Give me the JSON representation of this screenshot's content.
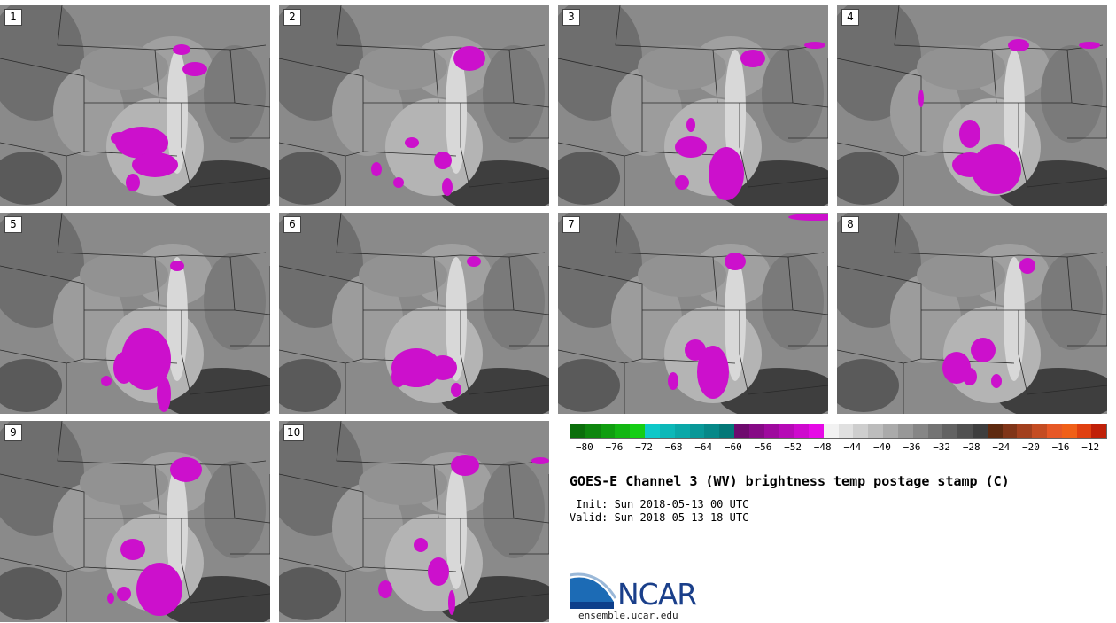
{
  "panels": [
    {
      "label": "1",
      "blobs": [
        [
          160,
          155,
          30,
          18
        ],
        [
          175,
          180,
          26,
          14
        ],
        [
          205,
          50,
          10,
          6
        ],
        [
          220,
          72,
          14,
          8
        ],
        [
          135,
          150,
          10,
          7
        ],
        [
          150,
          200,
          8,
          10
        ]
      ]
    },
    {
      "label": "2",
      "blobs": [
        [
          215,
          60,
          18,
          14
        ],
        [
          150,
          155,
          8,
          6
        ],
        [
          185,
          175,
          10,
          10
        ],
        [
          110,
          185,
          6,
          8
        ],
        [
          190,
          205,
          6,
          10
        ],
        [
          135,
          200,
          6,
          6
        ]
      ]
    },
    {
      "label": "3",
      "blobs": [
        [
          190,
          190,
          20,
          30
        ],
        [
          150,
          160,
          18,
          12
        ],
        [
          220,
          60,
          14,
          10
        ],
        [
          140,
          200,
          8,
          8
        ],
        [
          150,
          135,
          5,
          8
        ],
        [
          290,
          45,
          12,
          4
        ]
      ]
    },
    {
      "label": "4",
      "blobs": [
        [
          180,
          185,
          28,
          28
        ],
        [
          150,
          180,
          20,
          14
        ],
        [
          150,
          145,
          12,
          16
        ],
        [
          205,
          45,
          12,
          7
        ],
        [
          95,
          105,
          3,
          10
        ],
        [
          285,
          45,
          12,
          4
        ]
      ]
    },
    {
      "label": "5",
      "blobs": [
        [
          165,
          165,
          28,
          35
        ],
        [
          140,
          175,
          12,
          18
        ],
        [
          200,
          60,
          8,
          6
        ],
        [
          185,
          205,
          8,
          20
        ],
        [
          120,
          190,
          6,
          6
        ]
      ]
    },
    {
      "label": "6",
      "blobs": [
        [
          155,
          175,
          28,
          22
        ],
        [
          185,
          175,
          16,
          14
        ],
        [
          220,
          55,
          8,
          6
        ],
        [
          135,
          185,
          8,
          12
        ],
        [
          200,
          200,
          6,
          8
        ]
      ]
    },
    {
      "label": "7",
      "blobs": [
        [
          175,
          180,
          18,
          30
        ],
        [
          200,
          55,
          12,
          10
        ],
        [
          155,
          155,
          12,
          12
        ],
        [
          130,
          190,
          6,
          10
        ],
        [
          290,
          5,
          30,
          4
        ]
      ]
    },
    {
      "label": "8",
      "blobs": [
        [
          165,
          155,
          14,
          14
        ],
        [
          135,
          175,
          16,
          18
        ],
        [
          215,
          60,
          9,
          9
        ],
        [
          150,
          185,
          8,
          10
        ],
        [
          180,
          190,
          6,
          8
        ]
      ]
    },
    {
      "label": "9",
      "blobs": [
        [
          180,
          190,
          26,
          30
        ],
        [
          150,
          145,
          14,
          12
        ],
        [
          210,
          55,
          18,
          14
        ],
        [
          140,
          195,
          8,
          8
        ],
        [
          125,
          200,
          4,
          6
        ]
      ]
    },
    {
      "label": "10",
      "blobs": [
        [
          180,
          170,
          12,
          16
        ],
        [
          210,
          50,
          16,
          12
        ],
        [
          120,
          190,
          8,
          10
        ],
        [
          160,
          140,
          8,
          8
        ],
        [
          195,
          205,
          4,
          14
        ],
        [
          295,
          45,
          10,
          4
        ]
      ]
    }
  ],
  "colorbar": {
    "colors": [
      "#0b6e0b",
      "#0e860e",
      "#109e10",
      "#13b613",
      "#15ce15",
      "#0ec8c8",
      "#0cb8b8",
      "#0aa8a8",
      "#089898",
      "#068888",
      "#047878",
      "#6e0a6e",
      "#860a86",
      "#9e0a9e",
      "#b60ab6",
      "#ce0ace",
      "#e60ae6",
      "#f2f2f2",
      "#e0e0e0",
      "#cecece",
      "#bcbcbc",
      "#aaaaaa",
      "#989898",
      "#868686",
      "#747474",
      "#626262",
      "#505050",
      "#3e3e3e",
      "#5e2a10",
      "#803518",
      "#a2401e",
      "#c44c22",
      "#e65826",
      "#f06018",
      "#e04010",
      "#c02008"
    ],
    "ticks": [
      "−80",
      "−76",
      "−72",
      "−68",
      "−64",
      "−60",
      "−56",
      "−52",
      "−48",
      "−44",
      "−40",
      "−36",
      "−32",
      "−28",
      "−24",
      "−20",
      "−16",
      "−12"
    ],
    "tick_values": [
      -80,
      -76,
      -72,
      -68,
      -64,
      -60,
      -56,
      -52,
      -48,
      -44,
      -40,
      -36,
      -32,
      -28,
      -24,
      -20,
      -16,
      -12
    ],
    "min": -82,
    "max": -10
  },
  "title": "GOES-E Channel 3 (WV) brightness temp postage stamp (C)",
  "init": " Init: Sun 2018-05-13 00 UTC",
  "valid": "Valid: Sun 2018-05-13 18 UTC",
  "logo": {
    "name": "NCAR",
    "url": "ensemble.ucar.edu"
  }
}
